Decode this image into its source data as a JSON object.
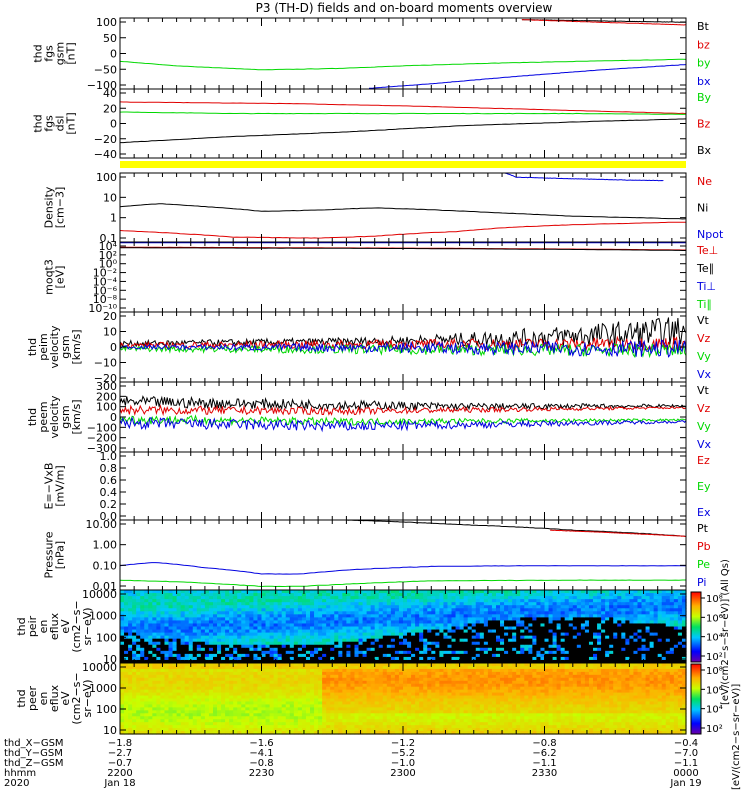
{
  "title": "P3 (TH-D) fields and on-board moments overview",
  "colors": {
    "black": "#000000",
    "red": "#e00000",
    "green": "#00d800",
    "blue": "#0000e0",
    "yellow": "#ffff00"
  },
  "chart_data": [
    {
      "type": "line",
      "id": "fgs_gsm",
      "ylabel": [
        "thd",
        "fgs",
        "gsm",
        "[nT]"
      ],
      "yticks": [
        "100",
        "50",
        "0",
        "−50",
        "−100"
      ],
      "ylim": [
        -110,
        105
      ],
      "legend": [
        {
          "name": "Bt",
          "color": "black"
        },
        {
          "name": "bz",
          "color": "red"
        },
        {
          "name": "by",
          "color": "green"
        },
        {
          "name": "bx",
          "color": "blue"
        }
      ],
      "series": [
        {
          "name": "Bt",
          "color": "black",
          "points": [
            [
              0.71,
              100
            ],
            [
              1.0,
              92
            ]
          ]
        },
        {
          "name": "bz",
          "color": "red",
          "points": [
            [
              0.71,
              100
            ],
            [
              0.85,
              92
            ],
            [
              1.0,
              84
            ]
          ]
        },
        {
          "name": "by",
          "color": "green",
          "points": [
            [
              0,
              -26
            ],
            [
              0.1,
              -40
            ],
            [
              0.25,
              -52
            ],
            [
              0.38,
              -48
            ],
            [
              0.5,
              -40
            ],
            [
              0.65,
              -32
            ],
            [
              0.85,
              -25
            ],
            [
              1.0,
              -20
            ]
          ]
        },
        {
          "name": "bx",
          "color": "blue",
          "points": [
            [
              0.44,
              -108
            ],
            [
              0.55,
              -94
            ],
            [
              0.7,
              -72
            ],
            [
              0.85,
              -52
            ],
            [
              1.0,
              -36
            ]
          ]
        }
      ]
    },
    {
      "type": "line",
      "id": "fgs_dsl",
      "ylabel": [
        "thd",
        "fgs",
        "dsl",
        "[nT]"
      ],
      "yticks": [
        "40",
        "20",
        "0",
        "−20",
        "−40"
      ],
      "ylim": [
        -48,
        42
      ],
      "legend": [
        {
          "name": "By",
          "color": "green"
        },
        {
          "name": "Bz",
          "color": "red"
        },
        {
          "name": "Bx",
          "color": "black"
        }
      ],
      "series": [
        {
          "name": "Bz",
          "color": "red",
          "points": [
            [
              0,
              25
            ],
            [
              0.3,
              23
            ],
            [
              0.5,
              20
            ],
            [
              0.7,
              16
            ],
            [
              0.9,
              12
            ],
            [
              1.0,
              10
            ]
          ]
        },
        {
          "name": "By",
          "color": "green",
          "points": [
            [
              0,
              12
            ],
            [
              0.2,
              10
            ],
            [
              0.4,
              10
            ],
            [
              0.6,
              10
            ],
            [
              0.8,
              10
            ],
            [
              1.0,
              9
            ]
          ]
        },
        {
          "name": "Bx",
          "color": "black",
          "points": [
            [
              0,
              -28
            ],
            [
              0.2,
              -20
            ],
            [
              0.4,
              -14
            ],
            [
              0.6,
              -6
            ],
            [
              0.8,
              -1
            ],
            [
              1.0,
              3
            ]
          ]
        }
      ]
    },
    {
      "type": "line",
      "id": "density",
      "ylabel": [
        "Density",
        "[cm−3]"
      ],
      "yscale": "log",
      "yticks": [
        "100",
        "10",
        "1",
        "0.1"
      ],
      "ylim": [
        0.05,
        200
      ],
      "legend": [
        {
          "name": "Ne",
          "color": "red"
        },
        {
          "name": "Ni",
          "color": "black"
        },
        {
          "name": "Npot",
          "color": "blue"
        }
      ],
      "series": [
        {
          "name": "Ni",
          "color": "black",
          "points": [
            [
              0,
              3.5
            ],
            [
              0.07,
              5
            ],
            [
              0.15,
              3.5
            ],
            [
              0.25,
              2.0
            ],
            [
              0.35,
              2.3
            ],
            [
              0.45,
              3.0
            ],
            [
              0.55,
              2.4
            ],
            [
              0.68,
              1.6
            ],
            [
              0.8,
              1.1
            ],
            [
              1.0,
              0.8
            ]
          ]
        },
        {
          "name": "Ne",
          "color": "red",
          "points": [
            [
              0,
              0.2
            ],
            [
              0.1,
              0.14
            ],
            [
              0.2,
              0.09
            ],
            [
              0.35,
              0.08
            ],
            [
              0.45,
              0.1
            ],
            [
              0.6,
              0.18
            ],
            [
              0.7,
              0.3
            ],
            [
              0.8,
              0.4
            ],
            [
              1.0,
              0.55
            ]
          ]
        },
        {
          "name": "Npot",
          "color": "blue",
          "points": [
            [
              0.68,
              200
            ],
            [
              0.7,
              120
            ],
            [
              0.8,
              100
            ],
            [
              0.9,
              85
            ],
            [
              0.96,
              80
            ]
          ]
        }
      ]
    },
    {
      "type": "line",
      "id": "moments_t",
      "ylabel": [
        "moqt3",
        "[eV]"
      ],
      "yscale": "log",
      "yticks": [
        "10⁴",
        "10²",
        "10⁰",
        "10⁻²",
        "10⁻⁴",
        "10⁻⁶",
        "10⁻⁸",
        "10⁻¹⁰"
      ],
      "ylim": [
        1e-10,
        10000.0
      ],
      "legend": [
        {
          "name": "Te⊥",
          "color": "red"
        },
        {
          "name": "Te∥",
          "color": "black"
        },
        {
          "name": "Ti⊥",
          "color": "blue"
        },
        {
          "name": "Ti∥",
          "color": "green"
        }
      ],
      "series": [
        {
          "name": "Ti∥",
          "color": "green",
          "points": [
            [
              0,
              9000
            ],
            [
              1.0,
              9000
            ]
          ]
        },
        {
          "name": "Ti⊥",
          "color": "blue",
          "points": [
            [
              0,
              7000
            ],
            [
              1.0,
              7000
            ]
          ]
        },
        {
          "name": "Te⊥",
          "color": "red",
          "points": [
            [
              0,
              900
            ],
            [
              0.5,
              600
            ],
            [
              1.0,
              250
            ]
          ]
        },
        {
          "name": "Te∥",
          "color": "black",
          "points": [
            [
              0,
              700
            ],
            [
              0.5,
              500
            ],
            [
              1.0,
              200
            ]
          ]
        }
      ]
    },
    {
      "type": "line",
      "id": "peim_velocity",
      "ylabel": [
        "thd",
        "peim",
        "velocity",
        "gsm",
        "[km/s]"
      ],
      "yticks": [
        "20",
        "10",
        "0",
        "−10",
        "−20"
      ],
      "ylim": [
        -20,
        20
      ],
      "legend": [
        {
          "name": "Vt",
          "color": "black"
        },
        {
          "name": "Vz",
          "color": "red"
        },
        {
          "name": "Vy",
          "color": "green"
        },
        {
          "name": "Vx",
          "color": "blue"
        }
      ],
      "series": [
        {
          "name": "Vt",
          "color": "black",
          "noise": [
            [
              0,
              1.5
            ],
            [
              0.5,
              2.5
            ],
            [
              1.0,
              9
            ]
          ],
          "points": [
            [
              0,
              2
            ],
            [
              0.4,
              3
            ],
            [
              0.7,
              5
            ],
            [
              1.0,
              9
            ]
          ]
        },
        {
          "name": "Vz",
          "color": "red",
          "noise": [
            [
              0,
              1.5
            ],
            [
              1.0,
              4
            ]
          ],
          "points": [
            [
              0,
              1
            ],
            [
              1.0,
              2
            ]
          ]
        },
        {
          "name": "Vy",
          "color": "green",
          "noise": [
            [
              0,
              1.5
            ],
            [
              1.0,
              4
            ]
          ],
          "points": [
            [
              0,
              -1
            ],
            [
              1.0,
              -2
            ]
          ]
        },
        {
          "name": "Vx",
          "color": "blue",
          "noise": [
            [
              0,
              1
            ],
            [
              1.0,
              5
            ]
          ],
          "points": [
            [
              0,
              0
            ],
            [
              1.0,
              -1
            ]
          ]
        }
      ]
    },
    {
      "type": "line",
      "id": "peem_velocity",
      "ylabel": [
        "thd",
        "peem",
        "velocity",
        "gsm",
        "[km/s]"
      ],
      "yticks": [
        "300",
        "200",
        "100",
        "0",
        "−100",
        "−200",
        "−300"
      ],
      "ylim": [
        -300,
        300
      ],
      "legend": [
        {
          "name": "Vt",
          "color": "black"
        },
        {
          "name": "Vz",
          "color": "red"
        },
        {
          "name": "Vy",
          "color": "green"
        },
        {
          "name": "Vx",
          "color": "blue"
        }
      ],
      "series": [
        {
          "name": "Vt",
          "color": "black",
          "noise": [
            [
              0,
              50
            ],
            [
              0.4,
              40
            ],
            [
              1.0,
              12
            ]
          ],
          "points": [
            [
              0,
              130
            ],
            [
              0.3,
              110
            ],
            [
              0.6,
              90
            ],
            [
              1.0,
              95
            ]
          ]
        },
        {
          "name": "Vz",
          "color": "red",
          "noise": [
            [
              0,
              40
            ],
            [
              0.4,
              30
            ],
            [
              1.0,
              8
            ]
          ],
          "points": [
            [
              0,
              60
            ],
            [
              0.4,
              50
            ],
            [
              1.0,
              80
            ]
          ]
        },
        {
          "name": "Vy",
          "color": "green",
          "noise": [
            [
              0,
              40
            ],
            [
              0.4,
              30
            ],
            [
              1.0,
              8
            ]
          ],
          "points": [
            [
              0,
              -20
            ],
            [
              0.4,
              -40
            ],
            [
              1.0,
              -25
            ]
          ]
        },
        {
          "name": "Vx",
          "color": "blue",
          "noise": [
            [
              0,
              50
            ],
            [
              0.4,
              45
            ],
            [
              1.0,
              10
            ]
          ],
          "points": [
            [
              0,
              -50
            ],
            [
              0.4,
              -80
            ],
            [
              1.0,
              -40
            ]
          ]
        }
      ]
    },
    {
      "type": "line",
      "id": "efield",
      "ylabel": [
        "E=−VxB",
        "[mV/m]"
      ],
      "yticks": [
        "1.0",
        "0.8",
        "0.6",
        "0.4",
        "0.2",
        "0.0"
      ],
      "ylim": [
        0,
        1
      ],
      "legend": [
        {
          "name": "Ez",
          "color": "red"
        },
        {
          "name": "Ey",
          "color": "green"
        },
        {
          "name": "Ex",
          "color": "blue"
        }
      ],
      "series": []
    },
    {
      "type": "line",
      "id": "pressure",
      "ylabel": [
        "Pressure",
        "[nPa]"
      ],
      "yscale": "log",
      "yticks": [
        "10.00",
        "1.00",
        "0.10",
        "0.01"
      ],
      "ylim": [
        0.01,
        25
      ],
      "legend": [
        {
          "name": "Pt",
          "color": "black"
        },
        {
          "name": "Pb",
          "color": "red"
        },
        {
          "name": "Pe",
          "color": "green"
        },
        {
          "name": "Pi",
          "color": "blue"
        }
      ],
      "series": [
        {
          "name": "Pt",
          "color": "black",
          "points": [
            [
              0.4,
              25
            ],
            [
              0.6,
              15
            ],
            [
              0.8,
              8
            ],
            [
              1.0,
              4
            ]
          ]
        },
        {
          "name": "Pb",
          "color": "red",
          "points": [
            [
              0.76,
              8
            ],
            [
              0.9,
              5.5
            ],
            [
              1.0,
              4
            ]
          ]
        },
        {
          "name": "Pi",
          "color": "blue",
          "points": [
            [
              0,
              0.15
            ],
            [
              0.06,
              0.22
            ],
            [
              0.15,
              0.12
            ],
            [
              0.25,
              0.06
            ],
            [
              0.32,
              0.06
            ],
            [
              0.42,
              0.1
            ],
            [
              0.55,
              0.14
            ],
            [
              0.7,
              0.15
            ],
            [
              1.0,
              0.15
            ]
          ]
        },
        {
          "name": "Pe",
          "color": "green",
          "points": [
            [
              0,
              0.03
            ],
            [
              0.1,
              0.025
            ],
            [
              0.25,
              0.015
            ],
            [
              0.32,
              0.015
            ],
            [
              0.45,
              0.022
            ],
            [
              0.55,
              0.028
            ],
            [
              0.8,
              0.03
            ],
            [
              1.0,
              0.03
            ]
          ]
        }
      ]
    },
    {
      "type": "heatmap",
      "id": "peir_spec",
      "ylabel": [
        "thd",
        "peir",
        "en",
        "eflux",
        "eV",
        "(cm2−s−",
        "sr−eV)"
      ],
      "yscale": "log",
      "yticks": [
        "10000",
        "1000",
        "100",
        "10"
      ],
      "ylim": [
        7,
        25000
      ]
    },
    {
      "type": "heatmap",
      "id": "peer_spec",
      "ylabel": [
        "thd",
        "peer",
        "en",
        "eflux",
        "eV",
        "(cm2−s−",
        "sr−eV)"
      ],
      "yscale": "log",
      "yticks": [
        "10000",
        "1000",
        "100",
        "10"
      ],
      "ylim": [
        7,
        25000
      ]
    }
  ],
  "colorbar": {
    "ticks": [
      "10⁸",
      "10⁶",
      "10⁴",
      "10²"
    ],
    "label": "[eV/(cm2−s−sr−eV)] (All Qs)",
    "label2": "[eV/(cm2−s−sr−eV)]"
  },
  "xaxis": {
    "row_labels": [
      "thd_X−GSM",
      "thd_Y−GSM",
      "thd_Z−GSM",
      "hhmm",
      "2020"
    ],
    "columns": [
      [
        "−1.8",
        "−2.7",
        "−0.7",
        "2200",
        "Jan 18"
      ],
      [
        "−1.6",
        "−4.1",
        "−0.8",
        "2230",
        ""
      ],
      [
        "−1.2",
        "−5.2",
        "−1.0",
        "2300",
        ""
      ],
      [
        "−0.8",
        "−6.2",
        "−1.1",
        "2330",
        ""
      ],
      [
        "−0.4",
        "−7.0",
        "−1.1",
        "0000",
        "Jan 19"
      ]
    ]
  }
}
